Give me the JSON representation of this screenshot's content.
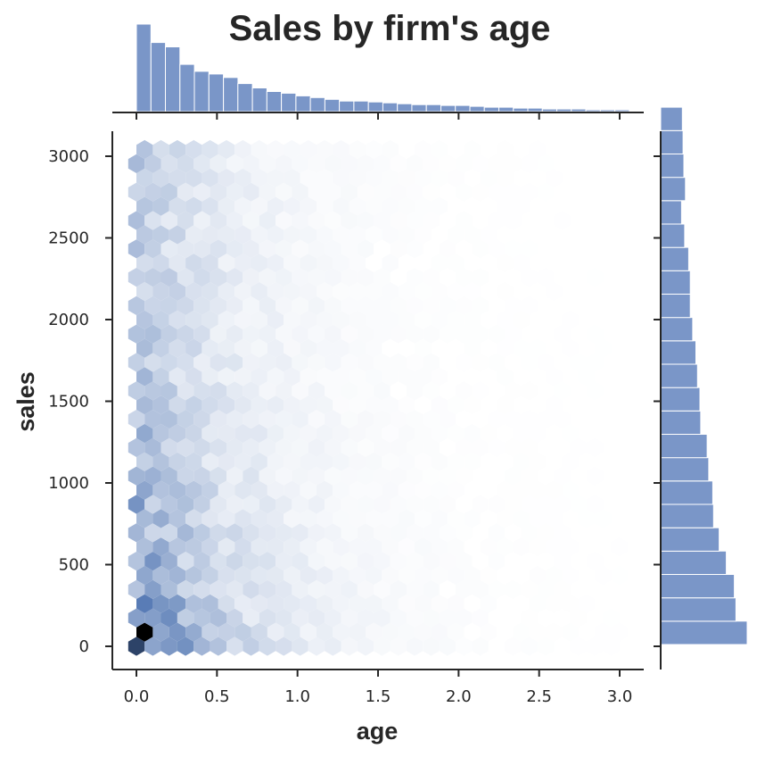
{
  "chart_data": {
    "type": "hexbin-joint",
    "title": "Sales by firm's age",
    "xlabel": "age",
    "ylabel": "sales",
    "xlim": [
      -0.15,
      3.15
    ],
    "ylim": [
      -150,
      3150
    ],
    "x_ticks": [
      0.0,
      0.5,
      1.0,
      1.5,
      2.0,
      2.5,
      3.0
    ],
    "x_tick_labels": [
      "0.0",
      "0.5",
      "1.0",
      "1.5",
      "2.0",
      "2.5",
      "3.0"
    ],
    "y_ticks": [
      0,
      500,
      1000,
      1500,
      2000,
      2500,
      3000
    ],
    "y_tick_labels": [
      "0",
      "500",
      "1000",
      "1500",
      "2000",
      "2500",
      "3000"
    ],
    "grid": false,
    "hexbin": {
      "gridsize": 30,
      "colormap": [
        "#ffffff",
        "#4c72b0",
        "#000000"
      ],
      "density_peak": {
        "age": 0.05,
        "sales": 100
      }
    },
    "marginal_x": {
      "bin_edges_start": 0.0,
      "bin_width": 0.09,
      "counts": [
        100,
        79,
        74,
        54,
        46,
        43,
        39,
        32,
        27,
        23,
        21,
        18,
        16,
        14,
        12,
        12,
        11,
        10,
        9,
        8,
        8,
        7,
        7,
        6,
        5,
        5,
        4,
        4,
        3,
        3,
        3,
        2,
        2,
        2
      ]
    },
    "marginal_y": {
      "bin_edges_start": 0,
      "bin_width": 143,
      "counts": [
        108,
        94,
        92,
        82,
        73,
        66,
        65,
        60,
        58,
        50,
        49,
        46,
        44,
        40,
        37,
        37,
        35,
        30,
        26,
        31,
        29,
        28,
        27
      ]
    },
    "colors": {
      "bar": "#7a96c8",
      "hex_base": "#4c72b0",
      "hex_peak": "#000000"
    }
  }
}
